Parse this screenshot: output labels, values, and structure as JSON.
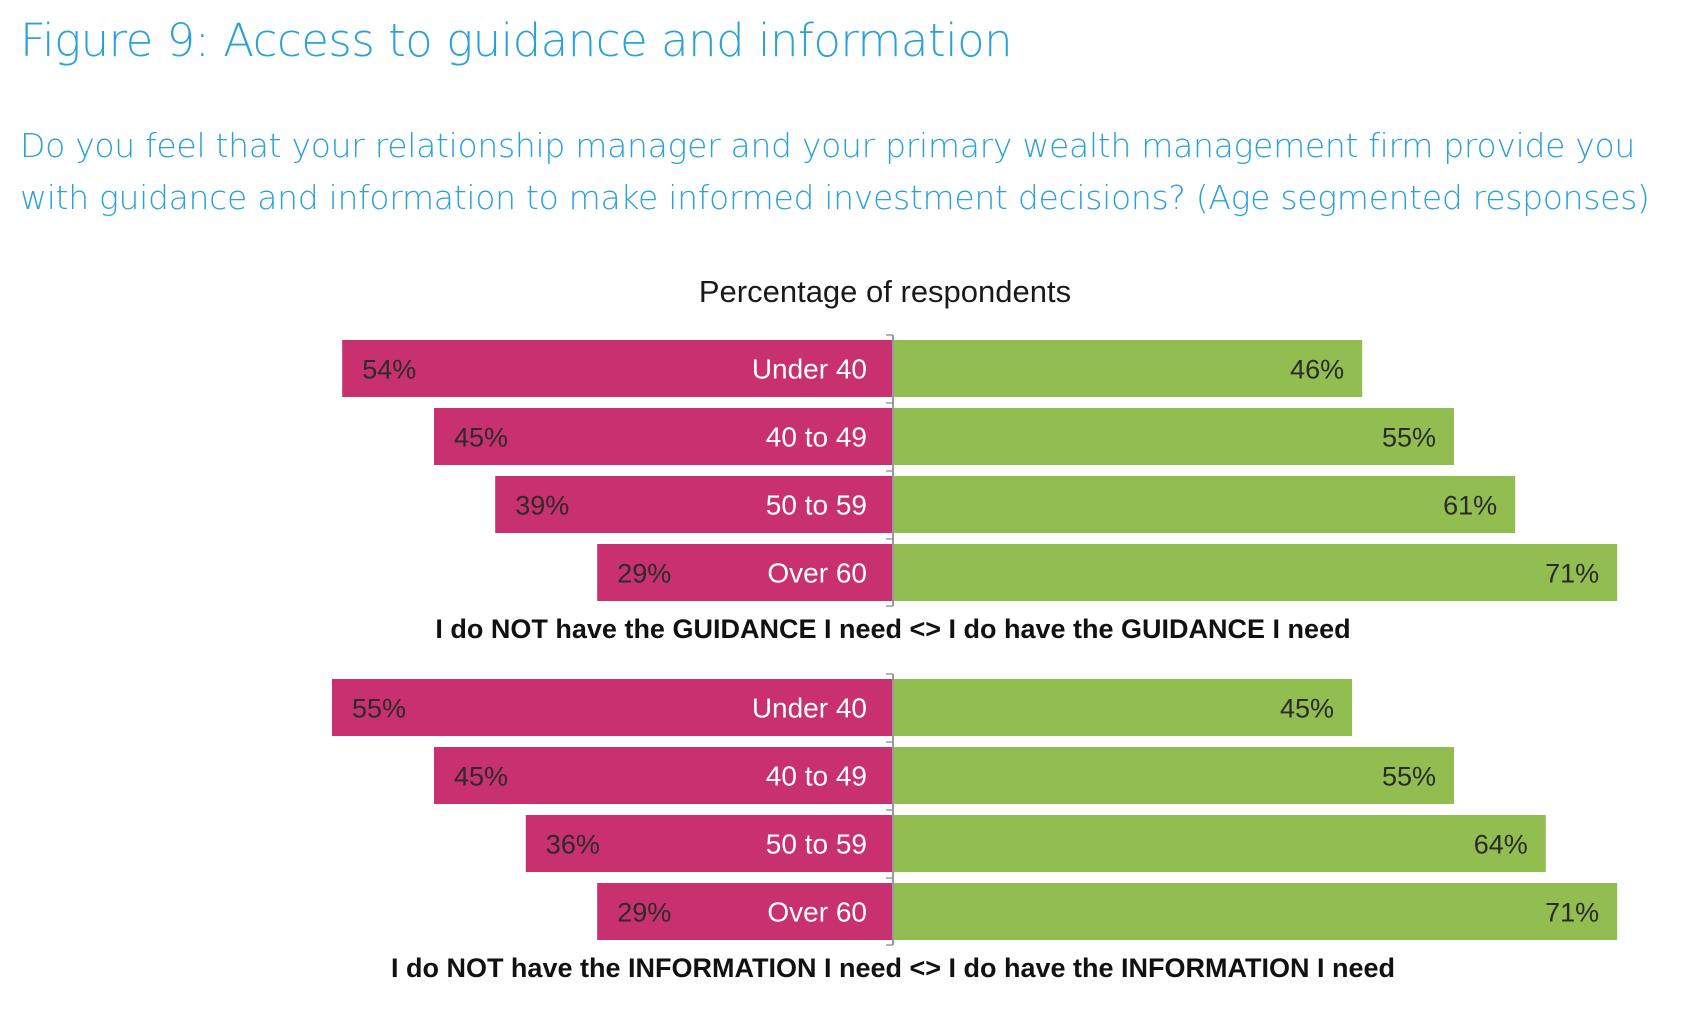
{
  "figure": {
    "title": "Figure 9: Access to guidance and information",
    "question": "Do you feel that your relationship manager and your primary wealth management firm provide you with guidance and information to make informed investment decisions? (Age segmented responses)"
  },
  "colors": {
    "accent_text": "#2aa1d9",
    "negative_bar": "#c8306f",
    "positive_bar": "#92bd50"
  },
  "chart_data": {
    "type": "bar",
    "orientation": "horizontal-diverging",
    "title": "Percentage of respondents",
    "unit": "%",
    "panels": [
      {
        "name": "guidance",
        "categories": [
          "Under 40",
          "40 to 49",
          "50 to 59",
          "Over 60"
        ],
        "series": [
          {
            "name": "I do NOT have the GUIDANCE I need",
            "side": "left",
            "color": "#c8306f",
            "values": [
              54,
              45,
              39,
              29
            ]
          },
          {
            "name": "I do have the GUIDANCE I need",
            "side": "right",
            "color": "#92bd50",
            "values": [
              46,
              55,
              61,
              71
            ]
          }
        ],
        "axis_caption": "I do NOT have the GUIDANCE I need <> I do have the GUIDANCE I need"
      },
      {
        "name": "information",
        "categories": [
          "Under 40",
          "40 to 49",
          "50 to 59",
          "Over 60"
        ],
        "series": [
          {
            "name": "I do NOT have the INFORMATION I need",
            "side": "left",
            "color": "#c8306f",
            "values": [
              55,
              45,
              36,
              29
            ]
          },
          {
            "name": "I do have the INFORMATION I need",
            "side": "right",
            "color": "#92bd50",
            "values": [
              45,
              55,
              64,
              71
            ]
          }
        ],
        "axis_caption": "I do NOT have the INFORMATION I need <> I do have the INFORMATION I need"
      }
    ],
    "legend": "none",
    "grid": false
  }
}
